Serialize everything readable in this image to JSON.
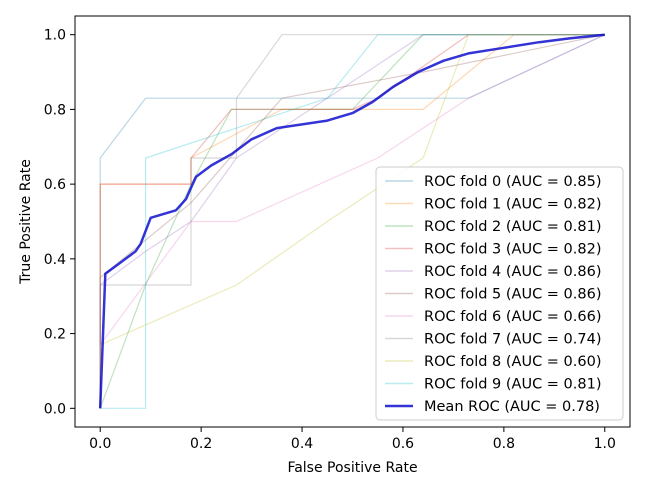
{
  "chart_data": {
    "type": "line",
    "title": "",
    "xlabel": "False Positive Rate",
    "ylabel": "True Positive Rate",
    "xlim": [
      -0.05,
      1.05
    ],
    "ylim": [
      -0.05,
      1.05
    ],
    "xticks": [
      0.0,
      0.2,
      0.4,
      0.6,
      0.8,
      1.0
    ],
    "yticks": [
      0.0,
      0.2,
      0.4,
      0.6,
      0.8,
      1.0
    ],
    "xtick_labels": [
      "0.0",
      "0.2",
      "0.4",
      "0.6",
      "0.8",
      "1.0"
    ],
    "ytick_labels": [
      "0.0",
      "0.2",
      "0.4",
      "0.6",
      "0.8",
      "1.0"
    ],
    "grid": false,
    "legend_position": "lower-right",
    "series": [
      {
        "name": "ROC fold 0 (AUC = 0.85)",
        "color": "#1f77b4",
        "opacity": 0.3,
        "x": [
          0,
          0,
          0.09,
          0.09,
          0.55,
          0.55,
          0.73,
          1.0
        ],
        "y": [
          0,
          0.67,
          0.83,
          0.83,
          0.83,
          0.83,
          0.83,
          1.0
        ]
      },
      {
        "name": "ROC fold 1 (AUC = 0.82)",
        "color": "#ff7f0e",
        "opacity": 0.3,
        "x": [
          0,
          0,
          0.18,
          0.18,
          0.36,
          0.64,
          0.82,
          1.0
        ],
        "y": [
          0,
          0.6,
          0.6,
          0.67,
          0.8,
          0.8,
          1.0,
          1.0
        ]
      },
      {
        "name": "ROC fold 2 (AUC = 0.81)",
        "color": "#2ca02c",
        "opacity": 0.3,
        "x": [
          0,
          0.09,
          0.18,
          0.26,
          0.5,
          0.64,
          1.0
        ],
        "y": [
          0,
          0.33,
          0.6,
          0.8,
          0.8,
          1.0,
          1.0
        ]
      },
      {
        "name": "ROC fold 3 (AUC = 0.82)",
        "color": "#d62728",
        "opacity": 0.3,
        "x": [
          0,
          0,
          0.18,
          0.18,
          0.26,
          0.5,
          0.55,
          0.73,
          1.0
        ],
        "y": [
          0,
          0.6,
          0.6,
          0.67,
          0.8,
          0.8,
          0.83,
          1.0,
          1.0
        ]
      },
      {
        "name": "ROC fold 4 (AUC = 0.86)",
        "color": "#9467bd",
        "opacity": 0.3,
        "x": [
          0,
          0,
          0.09,
          0.18,
          0.27,
          0.45,
          0.64,
          1.0
        ],
        "y": [
          0,
          0.33,
          0.42,
          0.5,
          0.67,
          0.83,
          1.0,
          1.0
        ]
      },
      {
        "name": "ROC fold 5 (AUC = 0.86)",
        "color": "#8c564b",
        "opacity": 0.3,
        "x": [
          0,
          0,
          0.18,
          0.36,
          0.64,
          1.0
        ],
        "y": [
          0,
          0.35,
          0.55,
          0.83,
          0.9,
          1.0
        ]
      },
      {
        "name": "ROC fold 6 (AUC = 0.66)",
        "color": "#e377c2",
        "opacity": 0.3,
        "x": [
          0,
          0,
          0.18,
          0.27,
          0.55,
          0.73,
          1.0
        ],
        "y": [
          0,
          0.17,
          0.5,
          0.5,
          0.67,
          0.83,
          1.0
        ]
      },
      {
        "name": "ROC fold 7 (AUC = 0.74)",
        "color": "#7f7f7f",
        "opacity": 0.3,
        "x": [
          0,
          0,
          0.18,
          0.18,
          0.27,
          0.27,
          0.36,
          0.73,
          1.0
        ],
        "y": [
          0,
          0.33,
          0.33,
          0.67,
          0.67,
          0.83,
          1.0,
          1.0,
          1.0
        ]
      },
      {
        "name": "ROC fold 8 (AUC = 0.60)",
        "color": "#bcbd22",
        "opacity": 0.3,
        "x": [
          0,
          0,
          0.27,
          0.45,
          0.64,
          0.73,
          1.0
        ],
        "y": [
          0,
          0.17,
          0.33,
          0.5,
          0.67,
          1.0,
          1.0
        ]
      },
      {
        "name": "ROC fold 9 (AUC = 0.81)",
        "color": "#17becf",
        "opacity": 0.3,
        "x": [
          0,
          0,
          0.09,
          0.09,
          0.45,
          0.55,
          0.55,
          1.0
        ],
        "y": [
          0,
          0,
          0,
          0.67,
          0.83,
          1.0,
          1.0,
          1.0
        ]
      },
      {
        "name": "Mean ROC (AUC = 0.78)",
        "color": "#0000cc",
        "opacity": 0.8,
        "width": 2.5,
        "x": [
          0,
          0.01,
          0.04,
          0.07,
          0.08,
          0.1,
          0.15,
          0.17,
          0.18,
          0.19,
          0.22,
          0.26,
          0.28,
          0.3,
          0.35,
          0.4,
          0.45,
          0.5,
          0.54,
          0.58,
          0.63,
          0.68,
          0.73,
          0.8,
          0.87,
          0.93,
          1.0
        ],
        "y": [
          0,
          0.36,
          0.39,
          0.42,
          0.44,
          0.51,
          0.53,
          0.56,
          0.59,
          0.62,
          0.65,
          0.68,
          0.7,
          0.72,
          0.75,
          0.76,
          0.77,
          0.79,
          0.82,
          0.86,
          0.9,
          0.93,
          0.95,
          0.965,
          0.98,
          0.99,
          1.0
        ]
      }
    ]
  }
}
